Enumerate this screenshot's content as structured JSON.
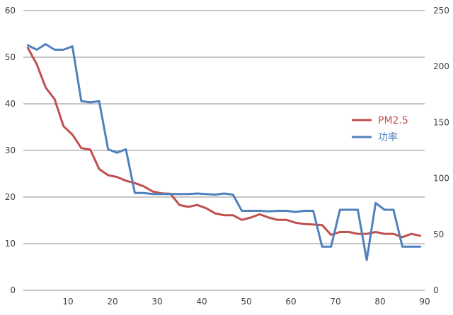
{
  "chart_data": {
    "type": "line",
    "title": "",
    "xlabel": "",
    "ylabel": "",
    "y2label": "",
    "xlim": [
      0,
      90
    ],
    "ylim": [
      0,
      60
    ],
    "y2lim": [
      0,
      250
    ],
    "x_ticks": [
      "10",
      "20",
      "30",
      "40",
      "50",
      "60",
      "70",
      "80",
      "90"
    ],
    "x_zero_label": "0",
    "y_ticks": [
      "0",
      "10",
      "20",
      "30",
      "40",
      "50",
      "60"
    ],
    "y2_ticks": [
      "0",
      "50",
      "100",
      "150",
      "200",
      "250"
    ],
    "grid": true,
    "legend_position": "right",
    "series": [
      {
        "name": "PM2.5",
        "axis": "left",
        "color": "#c0504d",
        "x": [
          1,
          3,
          5,
          7,
          9,
          11,
          13,
          15,
          17,
          19,
          21,
          23,
          25,
          27,
          29,
          31,
          33,
          35,
          37,
          39,
          41,
          43,
          45,
          47,
          49,
          51,
          53,
          55,
          57,
          59,
          61,
          63,
          65,
          67,
          69,
          71,
          73,
          75,
          77,
          79,
          81,
          83,
          85,
          87,
          89
        ],
        "y": [
          52,
          48.5,
          43.5,
          41,
          35.2,
          33.4,
          30.5,
          30.2,
          26,
          24.7,
          24.3,
          23.5,
          23,
          22.3,
          21.2,
          20.8,
          20.7,
          18.3,
          17.9,
          18.3,
          17.6,
          16.5,
          16.1,
          16.1,
          15.1,
          15.6,
          16.3,
          15.6,
          15.1,
          15.1,
          14.5,
          14.2,
          14.1,
          14,
          11.9,
          12.5,
          12.5,
          12.1,
          12.1,
          12.5,
          12.1,
          12.1,
          11.4,
          12.1,
          11.7
        ]
      },
      {
        "name": "功率",
        "axis": "right",
        "color": "#4f81bd",
        "x": [
          1,
          3,
          5,
          7,
          9,
          11,
          13,
          15,
          17,
          19,
          21,
          23,
          25,
          27,
          29,
          31,
          33,
          35,
          37,
          39,
          41,
          43,
          45,
          47,
          49,
          51,
          53,
          55,
          57,
          59,
          61,
          63,
          65,
          67,
          69,
          71,
          73,
          75,
          77,
          79,
          81,
          83,
          85,
          87,
          89
        ],
        "y": [
          219,
          215,
          220,
          215,
          215,
          218,
          169,
          168,
          169,
          126,
          123,
          126,
          87,
          87,
          86,
          86,
          86,
          86,
          86,
          86.5,
          86,
          85.5,
          86.5,
          85.5,
          71,
          71,
          71,
          70.5,
          71,
          71,
          70,
          71,
          71,
          39,
          39,
          72,
          72,
          72,
          27,
          78,
          72,
          72,
          39,
          39,
          39
        ]
      }
    ]
  }
}
